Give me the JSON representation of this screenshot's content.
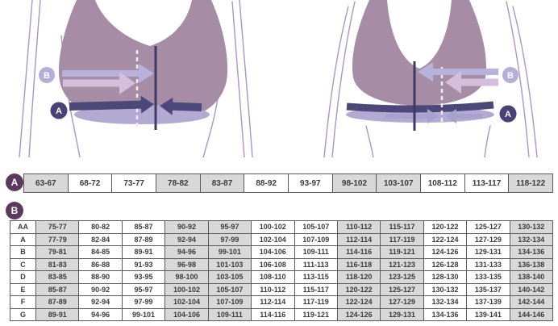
{
  "figures": {
    "front": {
      "a_label": "A",
      "b_label": "B"
    },
    "back": {
      "a_label": "A",
      "b_label": "B"
    }
  },
  "colors": {
    "bra": "#a78ca5",
    "underband": "#b3aad3",
    "band_dark": "#4c4879",
    "line_dark": "#3e3a66",
    "dash": "#efecf5",
    "arrow_light": "#b6b2db",
    "arrow_pink": "#d5bedb",
    "back_arrow": "#a8a1cd",
    "outline": "#a796c6",
    "badge_fig_a": "#4a4178",
    "badge_fig_b": "#b5aed9",
    "badge_table_bg": "#5c3a60",
    "cell_shaded": "#d8d8d8",
    "cell_border": "#5a5a5a",
    "text": "#3a3a3a"
  },
  "table_a": {
    "label": "A",
    "cells": [
      "63-67",
      "68-72",
      "73-77",
      "78-82",
      "83-87",
      "88-92",
      "93-97",
      "98-102",
      "103-107",
      "108-112",
      "113-117",
      "118-122"
    ]
  },
  "table_b": {
    "label": "B",
    "rows": [
      {
        "label": "AA",
        "cells": [
          "75-77",
          "80-82",
          "85-87",
          "90-92",
          "95-97",
          "100-102",
          "105-107",
          "110-112",
          "115-117",
          "120-122",
          "125-127",
          "130-132"
        ]
      },
      {
        "label": "A",
        "cells": [
          "77-79",
          "82-84",
          "87-89",
          "92-94",
          "97-99",
          "102-104",
          "107-109",
          "112-114",
          "117-119",
          "122-124",
          "127-129",
          "132-134"
        ]
      },
      {
        "label": "B",
        "cells": [
          "79-81",
          "84-85",
          "89-91",
          "94-96",
          "99-101",
          "104-106",
          "109-111",
          "114-116",
          "119-121",
          "124-126",
          "129-131",
          "134-136"
        ]
      },
      {
        "label": "C",
        "cells": [
          "81-83",
          "86-88",
          "91-93",
          "96-98",
          "101-103",
          "106-108",
          "111-113",
          "116-118",
          "121-123",
          "126-128",
          "131-133",
          "136-138"
        ]
      },
      {
        "label": "D",
        "cells": [
          "83-85",
          "88-90",
          "93-95",
          "98-100",
          "103-105",
          "108-110",
          "113-115",
          "118-120",
          "123-125",
          "128-130",
          "133-135",
          "138-140"
        ]
      },
      {
        "label": "E",
        "cells": [
          "85-87",
          "90-92",
          "95-97",
          "100-102",
          "105-107",
          "110-112",
          "115-117",
          "120-122",
          "125-127",
          "130-132",
          "135-137",
          "140-142"
        ]
      },
      {
        "label": "F",
        "cells": [
          "87-89",
          "92-94",
          "97-99",
          "102-104",
          "107-109",
          "112-114",
          "117-119",
          "122-124",
          "127-129",
          "132-134",
          "137-139",
          "142-144"
        ]
      },
      {
        "label": "G",
        "cells": [
          "89-91",
          "94-96",
          "99-101",
          "104-106",
          "109-111",
          "114-116",
          "119-121",
          "124-126",
          "129-131",
          "134-136",
          "139-141",
          "144-146"
        ]
      }
    ]
  }
}
